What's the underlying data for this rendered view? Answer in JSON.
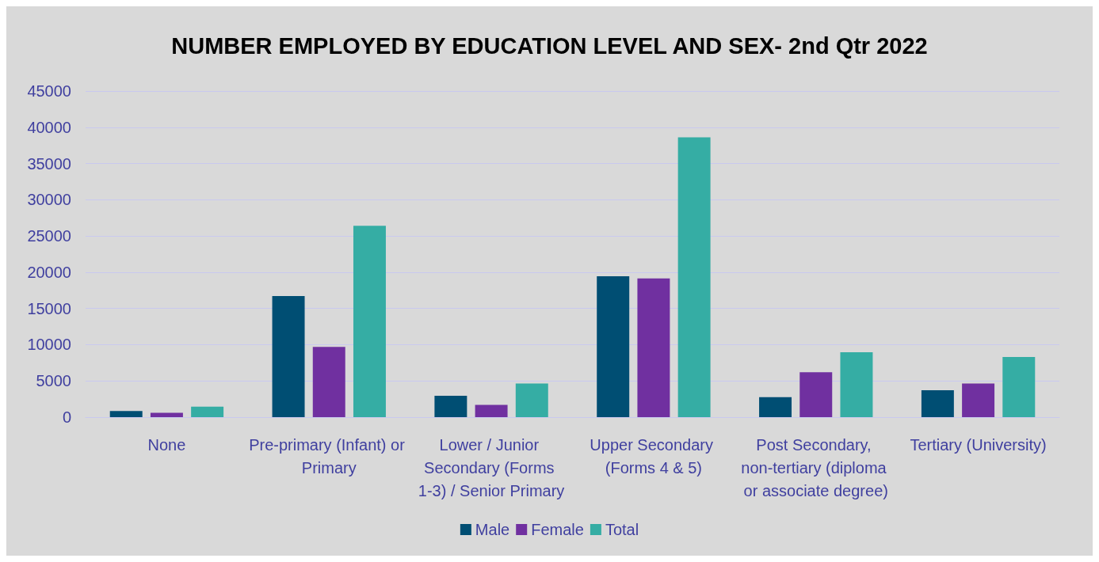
{
  "chart_data": {
    "type": "bar",
    "title": "NUMBER EMPLOYED BY EDUCATION LEVEL AND SEX- 2nd Qtr 2022",
    "categories": [
      "None",
      "Pre-primary (Infant) or Primary",
      "Lower / Junior Secondary (Forms 1-3) / Senior Primary",
      "Upper Secondary (Forms 4 & 5)",
      "Post Secondary, non-tertiary (diploma or associate degree)",
      "Tertiary (University)"
    ],
    "series": [
      {
        "name": "Male",
        "color": "#004e73",
        "values": [
          850,
          16700,
          2950,
          19450,
          2750,
          3700
        ]
      },
      {
        "name": "Female",
        "color": "#7030a0",
        "values": [
          600,
          9700,
          1700,
          19150,
          6200,
          4650
        ]
      },
      {
        "name": "Total",
        "color": "#35ada4",
        "values": [
          1450,
          26400,
          4650,
          38600,
          8950,
          8300
        ]
      }
    ],
    "ylim": [
      0,
      45000
    ],
    "yticks": [
      0,
      5000,
      10000,
      15000,
      20000,
      25000,
      30000,
      35000,
      40000,
      45000
    ],
    "grid": "y",
    "legend": "bottom"
  }
}
